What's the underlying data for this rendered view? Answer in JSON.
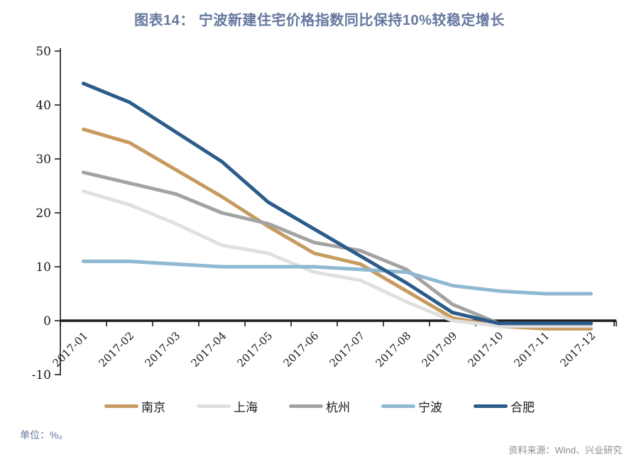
{
  "title": "图表14：  宁波新建住宅价格指数同比保持10%较稳定增长",
  "unit_note": "单位：%。",
  "source_note": "资料来源：Wind、兴业研究",
  "colors": {
    "title_text": "#64789E",
    "axis": "#1a1a1a",
    "source_text": "#8C8C8C"
  },
  "chart_data": {
    "type": "line",
    "title": "图表14：  宁波新建住宅价格指数同比保持10%较稳定增长",
    "x": [
      "2017-01",
      "2017-02",
      "2017-03",
      "2017-04",
      "2017-05",
      "2017-06",
      "2017-07",
      "2017-08",
      "2017-09",
      "2017-10",
      "2017-11",
      "2017-12"
    ],
    "series": [
      {
        "name": "南京",
        "slug": "nanjing",
        "color": "#C79B5F",
        "values": [
          35.5,
          33,
          28,
          23,
          17.5,
          12.5,
          10.5,
          5.5,
          0.5,
          -1,
          -1.5,
          -1.5
        ]
      },
      {
        "name": "上海",
        "slug": "shanghai",
        "color": "#E0E0E0",
        "values": [
          24,
          21.5,
          18,
          14,
          12.5,
          9,
          7.5,
          3.5,
          0,
          -1,
          -1,
          -1
        ]
      },
      {
        "name": "杭州",
        "slug": "hangzhou",
        "color": "#A3A3A3",
        "values": [
          27.5,
          25.5,
          23.5,
          20,
          18,
          14.5,
          13,
          9.5,
          3,
          -0.5,
          -0.5,
          -0.5
        ]
      },
      {
        "name": "宁波",
        "slug": "ningbo",
        "color": "#8FB8D2",
        "values": [
          11,
          11,
          10.5,
          10,
          10,
          10,
          9.5,
          9,
          6.5,
          5.5,
          5,
          5
        ]
      },
      {
        "name": "合肥",
        "slug": "hefei",
        "color": "#2B5C8A",
        "values": [
          44,
          40.5,
          35,
          29.5,
          22,
          17,
          12,
          7,
          1.5,
          -0.5,
          -0.5,
          -0.5
        ]
      }
    ],
    "ylim": [
      -10,
      50
    ],
    "yticks": [
      50,
      40,
      30,
      20,
      10,
      0,
      -10
    ],
    "xlabel": "",
    "ylabel": "",
    "grid": false,
    "legend_position": "bottom"
  }
}
